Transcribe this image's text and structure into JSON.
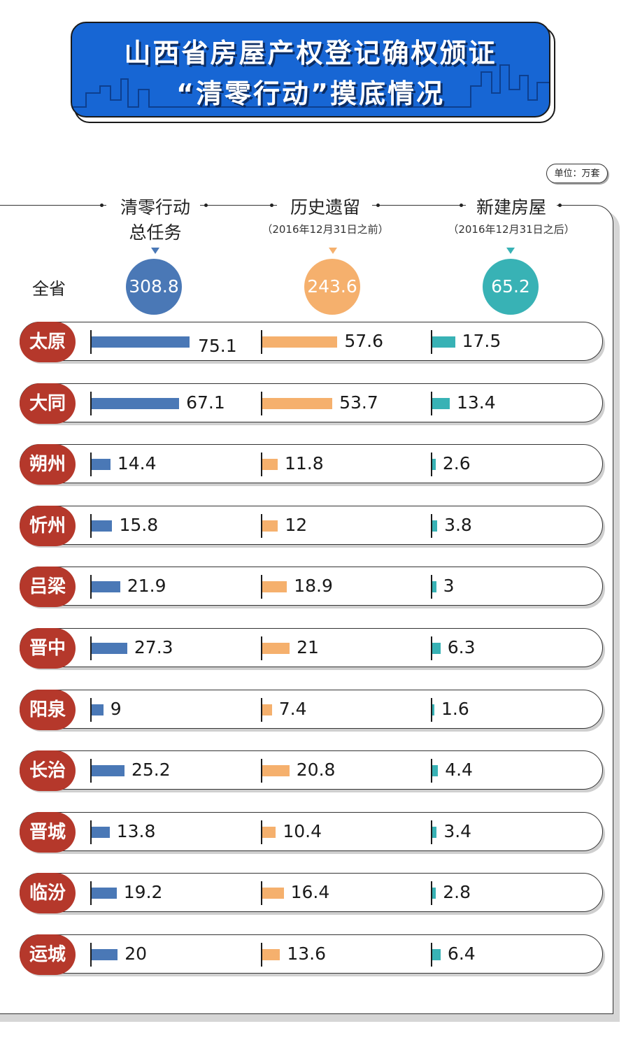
{
  "banner": {
    "line1": "山西省房屋产权登记确权颁证",
    "line2": "“清零行动”摸底情况"
  },
  "unit": "单位：万套",
  "columns": {
    "total": {
      "title_line1": "清零行动",
      "title_line2": "总任务"
    },
    "history": {
      "title": "历史遗留",
      "subtitle": "（2016年12月31日之前）"
    },
    "new": {
      "title": "新建房屋",
      "subtitle": "（2016年12月31日之后）"
    }
  },
  "colors": {
    "total": "#4a78b6",
    "history": "#f5b06d",
    "new": "#38b2b5",
    "city": "#b5382b",
    "banner": "#1766d4"
  },
  "province": {
    "label": "全省",
    "total": "308.8",
    "history": "243.6",
    "new": "65.2"
  },
  "chart_data": {
    "type": "bar",
    "title": "山西省房屋产权登记确权颁证“清零行动”摸底情况",
    "unit": "万套",
    "categories": [
      "太原",
      "大同",
      "朔州",
      "忻州",
      "吕梁",
      "晋中",
      "阳泉",
      "长治",
      "晋城",
      "临汾",
      "运城"
    ],
    "series": [
      {
        "name": "清零行动总任务",
        "values": [
          75.1,
          67.1,
          14.4,
          15.8,
          21.9,
          27.3,
          9,
          25.2,
          13.8,
          19.2,
          20
        ]
      },
      {
        "name": "历史遗留",
        "values": [
          57.6,
          53.7,
          11.8,
          12,
          18.9,
          21,
          7.4,
          20.8,
          10.4,
          16.4,
          13.6
        ]
      },
      {
        "name": "新建房屋",
        "values": [
          17.5,
          13.4,
          2.6,
          3.8,
          3,
          6.3,
          1.6,
          4.4,
          3.4,
          2.8,
          6.4
        ]
      }
    ]
  }
}
